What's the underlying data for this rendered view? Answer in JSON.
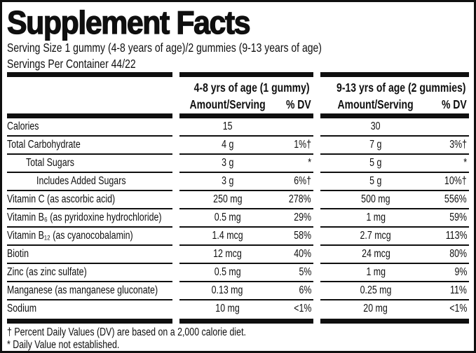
{
  "title": "Supplement Facts",
  "serving": {
    "size_line": "Serving Size 1 gummy (4-8 years of age)/2 gummies (9-13 years of age)",
    "per_container_line": "Servings Per Container 44/22"
  },
  "table": {
    "group1_title": "4-8 yrs of age (1 gummy)",
    "group2_title": "9-13 yrs of age (2 gummies)",
    "amount_header": "Amount/Serving",
    "dv_header": "% DV",
    "rows": [
      {
        "name": "Calories",
        "indent": 0,
        "amount1": "15",
        "dv1": "",
        "amount2": "30",
        "dv2": ""
      },
      {
        "name": "Total Carbohydrate",
        "indent": 0,
        "amount1": "4 g",
        "dv1": "1%†",
        "amount2": "7 g",
        "dv2": "3%†"
      },
      {
        "name": "Total Sugars",
        "indent": 1,
        "amount1": "3 g",
        "dv1": "*",
        "amount2": "5 g",
        "dv2": "*"
      },
      {
        "name": "Includes Added Sugars",
        "indent": 2,
        "amount1": "3 g",
        "dv1": "6%†",
        "amount2": "5 g",
        "dv2": "10%†"
      },
      {
        "name": "Vitamin C (as ascorbic acid)",
        "indent": 0,
        "amount1": "250 mg",
        "dv1": "278%",
        "amount2": "500 mg",
        "dv2": "556%"
      },
      {
        "name": "Vitamin B₆ (as pyridoxine hydrochloride)",
        "indent": 0,
        "amount1": "0.5 mg",
        "dv1": "29%",
        "amount2": "1 mg",
        "dv2": "59%"
      },
      {
        "name": "Vitamin B₁₂ (as cyanocobalamin)",
        "indent": 0,
        "amount1": "1.4 mcg",
        "dv1": "58%",
        "amount2": "2.7 mcg",
        "dv2": "113%"
      },
      {
        "name": "Biotin",
        "indent": 0,
        "amount1": "12 mcg",
        "dv1": "40%",
        "amount2": "24 mcg",
        "dv2": "80%"
      },
      {
        "name": "Zinc (as zinc sulfate)",
        "indent": 0,
        "amount1": "0.5 mg",
        "dv1": "5%",
        "amount2": "1 mg",
        "dv2": "9%"
      },
      {
        "name": "Manganese (as manganese gluconate)",
        "indent": 0,
        "amount1": "0.13 mg",
        "dv1": "6%",
        "amount2": "0.25 mg",
        "dv2": "11%"
      },
      {
        "name": "Sodium",
        "indent": 0,
        "amount1": "10 mg",
        "dv1": "<1%",
        "amount2": "20 mg",
        "dv2": "<1%"
      }
    ]
  },
  "footnotes": [
    "† Percent Daily Values (DV) are based on a 2,000 calorie diet.",
    "* Daily Value not established."
  ],
  "colors": {
    "text": "#0f0f0f",
    "background": "#ffffff"
  }
}
